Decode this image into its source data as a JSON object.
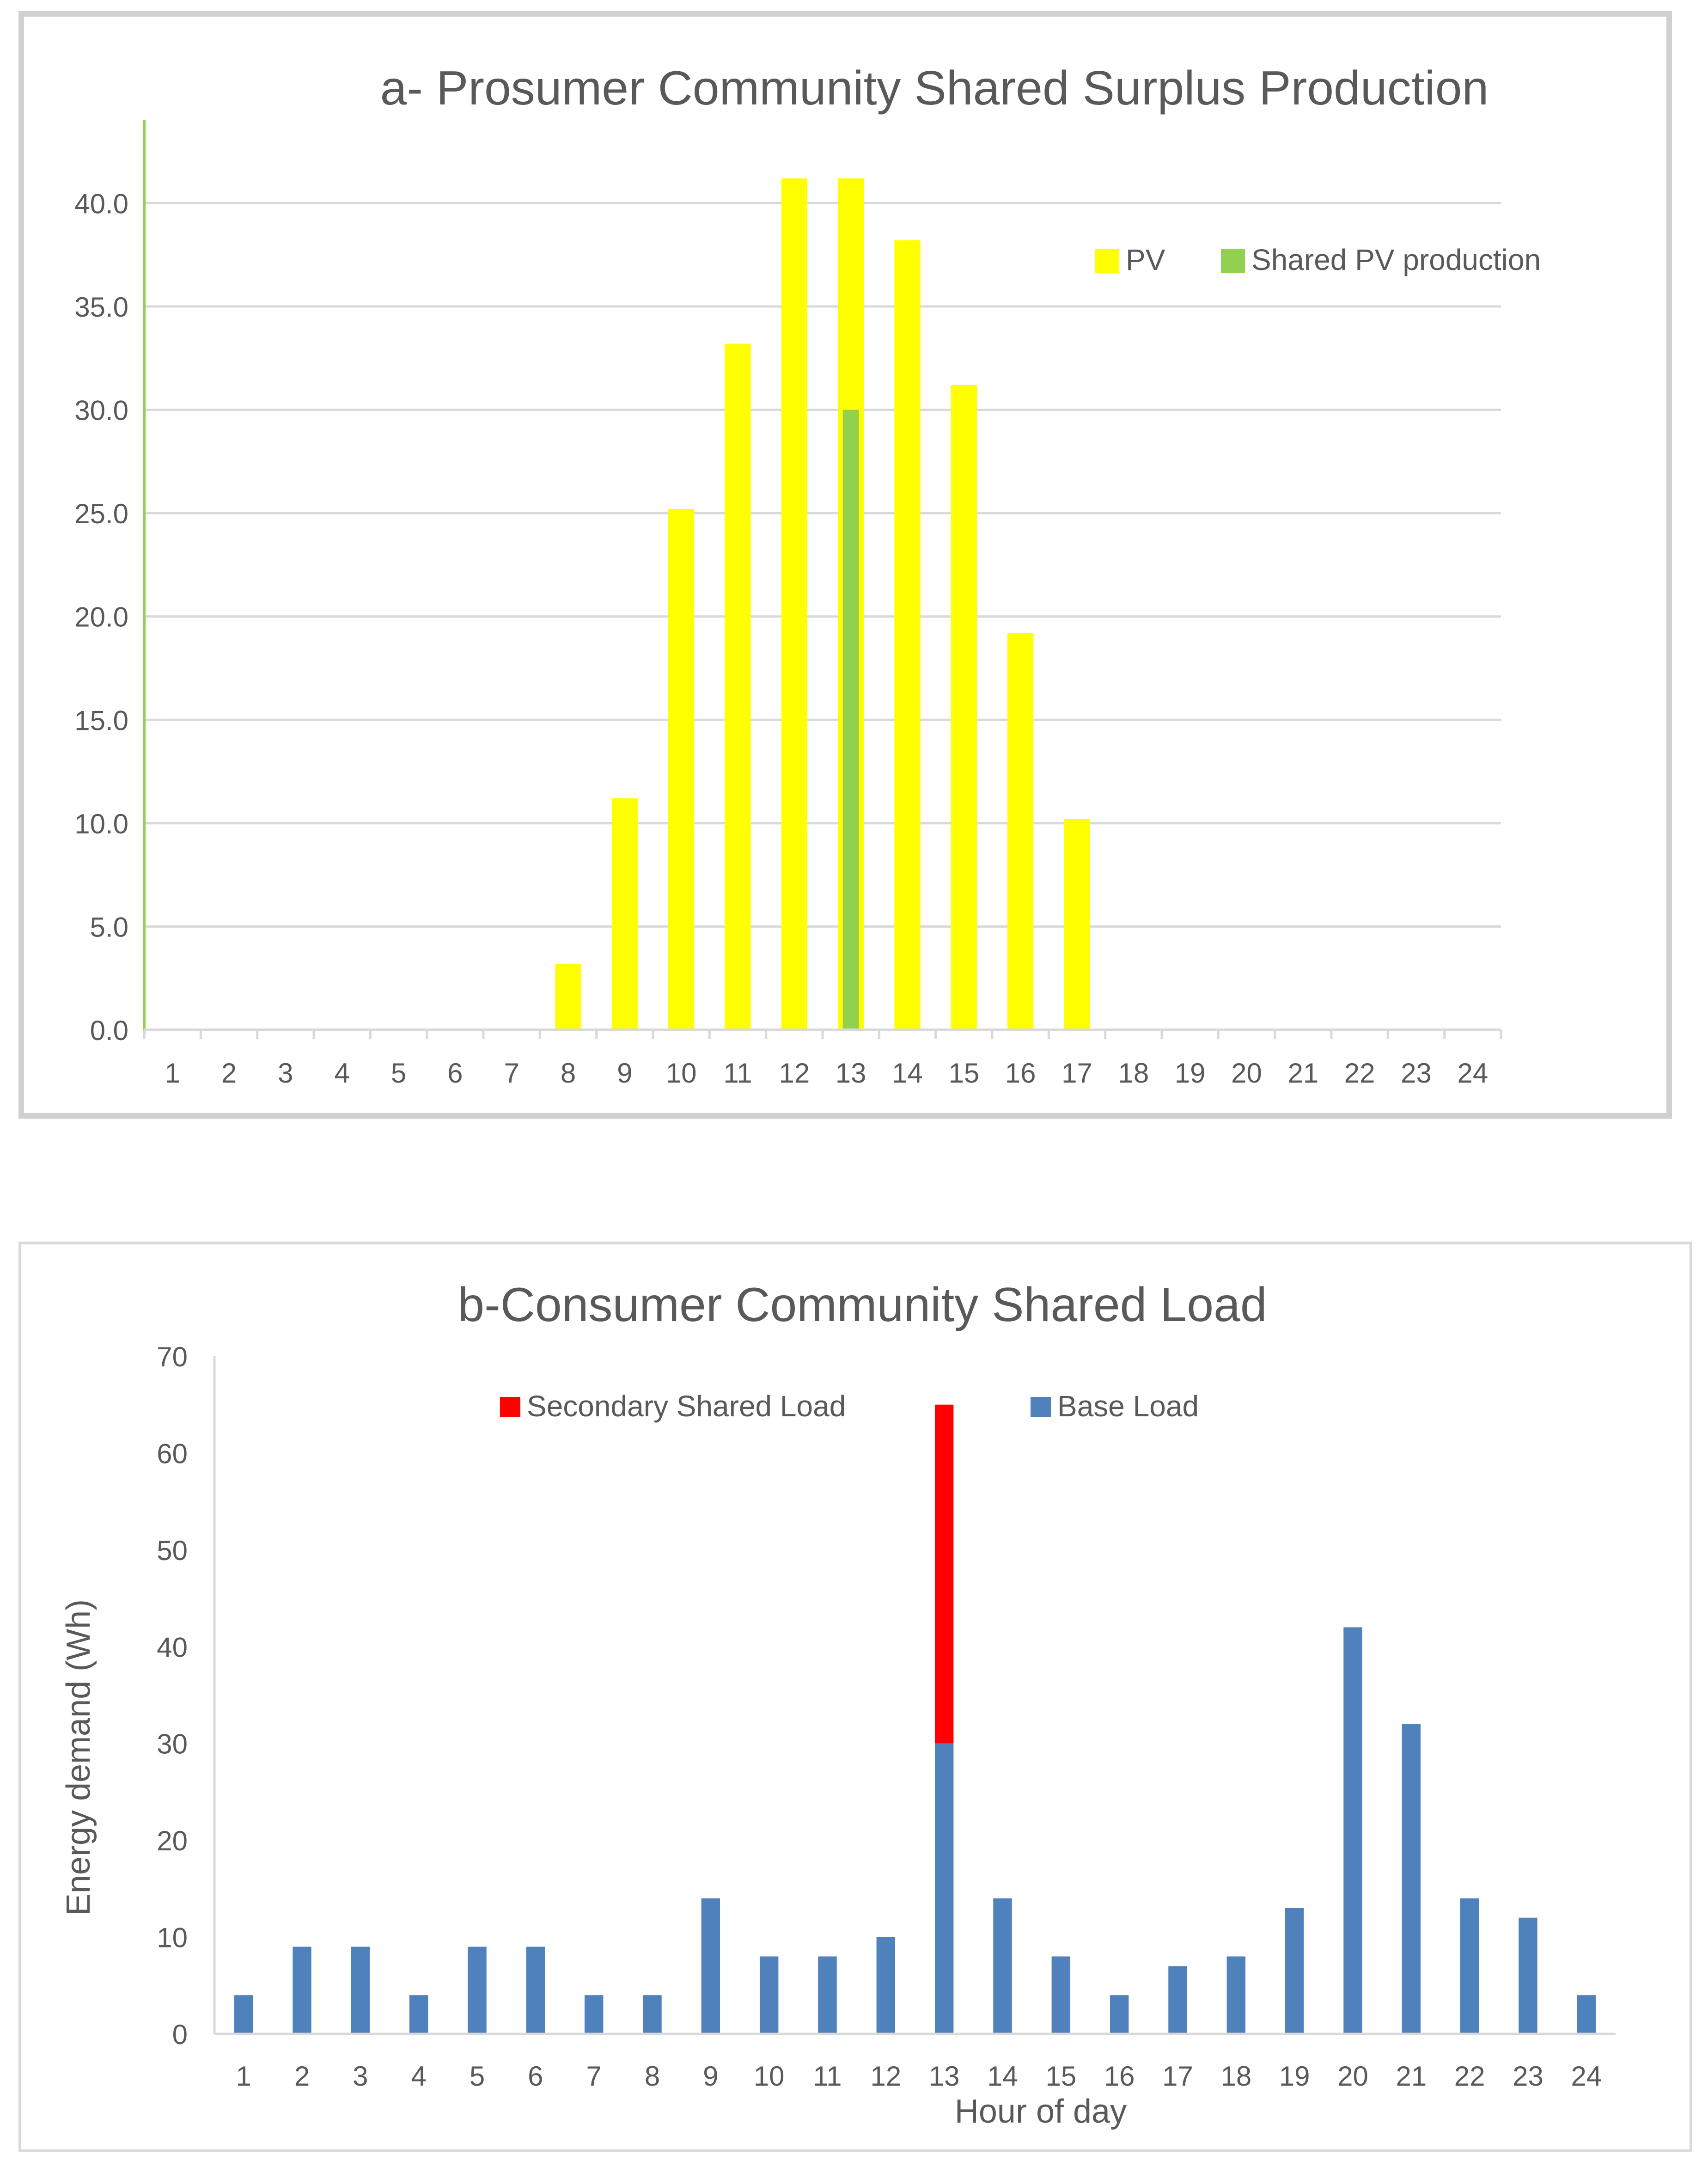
{
  "chart_data": [
    {
      "id": "a",
      "type": "bar",
      "title": "a- Prosumer Community Shared Surplus Production",
      "xlabel": "",
      "ylabel": "",
      "ylim": [
        0,
        42
      ],
      "yticks": [
        "0.0",
        "5.0",
        "10.0",
        "15.0",
        "20.0",
        "25.0",
        "30.0",
        "35.0",
        "40.0"
      ],
      "ytick_values": [
        0,
        5,
        10,
        15,
        20,
        25,
        30,
        35,
        40
      ],
      "grid": true,
      "legend_position": "top-right",
      "categories": [
        "1",
        "2",
        "3",
        "4",
        "5",
        "6",
        "7",
        "8",
        "9",
        "10",
        "11",
        "12",
        "13",
        "14",
        "15",
        "16",
        "17",
        "18",
        "19",
        "20",
        "21",
        "22",
        "23",
        "24"
      ],
      "series": [
        {
          "name": "PV",
          "color": "#ffff00",
          "values": [
            0,
            0,
            0,
            0,
            0,
            0,
            0,
            3.2,
            11.2,
            25.2,
            33.2,
            41.2,
            41.2,
            38.2,
            31.2,
            19.2,
            10.2,
            0,
            0,
            0,
            0,
            0,
            0,
            0
          ]
        },
        {
          "name": "Shared PV production",
          "color": "#92d050",
          "values": [
            0,
            0,
            0,
            0,
            0,
            0,
            0,
            0,
            0,
            0,
            0,
            0,
            30,
            0,
            0,
            0,
            0,
            0,
            0,
            0,
            0,
            0,
            0,
            0
          ]
        }
      ]
    },
    {
      "id": "b",
      "type": "bar",
      "stacked": true,
      "title": "b-Consumer Community Shared Load",
      "xlabel": "Hour of day",
      "ylabel": "Energy demand (Wh)",
      "ylim": [
        0,
        70
      ],
      "yticks": [
        "0",
        "10",
        "20",
        "30",
        "40",
        "50",
        "60",
        "70"
      ],
      "ytick_values": [
        0,
        10,
        20,
        30,
        40,
        50,
        60,
        70
      ],
      "grid": false,
      "legend_position": "top",
      "categories": [
        "1",
        "2",
        "3",
        "4",
        "5",
        "6",
        "7",
        "8",
        "9",
        "10",
        "11",
        "12",
        "13",
        "14",
        "15",
        "16",
        "17",
        "18",
        "19",
        "20",
        "21",
        "22",
        "23",
        "24"
      ],
      "series": [
        {
          "name": "Base Load",
          "color": "#4f81bd",
          "values": [
            4,
            9,
            9,
            4,
            9,
            9,
            4,
            4,
            14,
            8,
            8,
            10,
            30,
            14,
            8,
            4,
            7,
            8,
            13,
            42,
            32,
            14,
            12,
            4
          ]
        },
        {
          "name": "Secondary Shared Load",
          "color": "#ff0000",
          "values": [
            0,
            0,
            0,
            0,
            0,
            0,
            0,
            0,
            0,
            0,
            0,
            0,
            35,
            0,
            0,
            0,
            0,
            0,
            0,
            0,
            0,
            0,
            0,
            0
          ]
        }
      ]
    }
  ]
}
